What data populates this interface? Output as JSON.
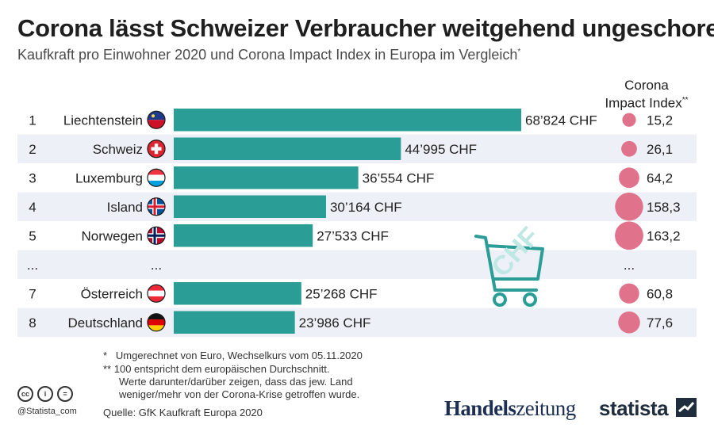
{
  "title": "Corona lässt Schweizer Verbraucher weitgehend ungeschoren",
  "subtitle": "Kaufkraft pro Einwohner 2020 und Corona Impact Index in Europa im Vergleich",
  "subtitle_mark": "*",
  "index_header_line1": "Corona",
  "index_header_line2": "Impact Index",
  "index_header_mark": "**",
  "gap_row": {
    "rank": "...",
    "country": "...",
    "index": "..."
  },
  "notes": {
    "n1_mark": "*",
    "n1": "Umgerechnet von  Euro, Wechselkurs vom 05.11.2020",
    "n2_mark": "**",
    "n2_line1": "100 entspricht dem europäischen Durchschnitt.",
    "n2_line2": "Werte darunter/darüber zeigen, dass das jew. Land",
    "n2_line3": "weniger/mehr von der Corona-Krise getroffen wurde."
  },
  "source": "Quelle: GfK Kaufkraft Europa 2020",
  "handle": "@Statista_com",
  "license_icons": [
    "cc",
    "i",
    "="
  ],
  "brand_hz_a": "Handels",
  "brand_hz_b": "zeitung",
  "brand_statista": "statista",
  "cart_label": "CHF",
  "colors": {
    "bar": "#2a9d96",
    "bubble": "#e0728c",
    "stripe": "#edf0f6"
  },
  "chart_data": {
    "type": "bar",
    "title": "Kaufkraft pro Einwohner 2020",
    "unit": "CHF",
    "rows": [
      {
        "rank": "1",
        "country": "Liechtenstein",
        "flag": "li",
        "value": 68824,
        "label": "68’824 CHF",
        "index": 15.2,
        "index_label": "15,2"
      },
      {
        "rank": "2",
        "country": "Schweiz",
        "flag": "ch",
        "value": 44995,
        "label": "44’995 CHF",
        "index": 26.1,
        "index_label": "26,1"
      },
      {
        "rank": "3",
        "country": "Luxemburg",
        "flag": "lu",
        "value": 36554,
        "label": "36’554 CHF",
        "index": 64.2,
        "index_label": "64,2"
      },
      {
        "rank": "4",
        "country": "Island",
        "flag": "is",
        "value": 30164,
        "label": "30’164 CHF",
        "index": 158.3,
        "index_label": "158,3"
      },
      {
        "rank": "5",
        "country": "Norwegen",
        "flag": "no",
        "value": 27533,
        "label": "27’533 CHF",
        "index": 163.2,
        "index_label": "163,2"
      },
      {
        "gap": true
      },
      {
        "rank": "7",
        "country": "Österreich",
        "flag": "at",
        "value": 25268,
        "label": "25’268 CHF",
        "index": 60.8,
        "index_label": "60,8"
      },
      {
        "rank": "8",
        "country": "Deutschland",
        "flag": "de",
        "value": 23986,
        "label": "23’986 CHF",
        "index": 77.6,
        "index_label": "77,6"
      }
    ]
  }
}
